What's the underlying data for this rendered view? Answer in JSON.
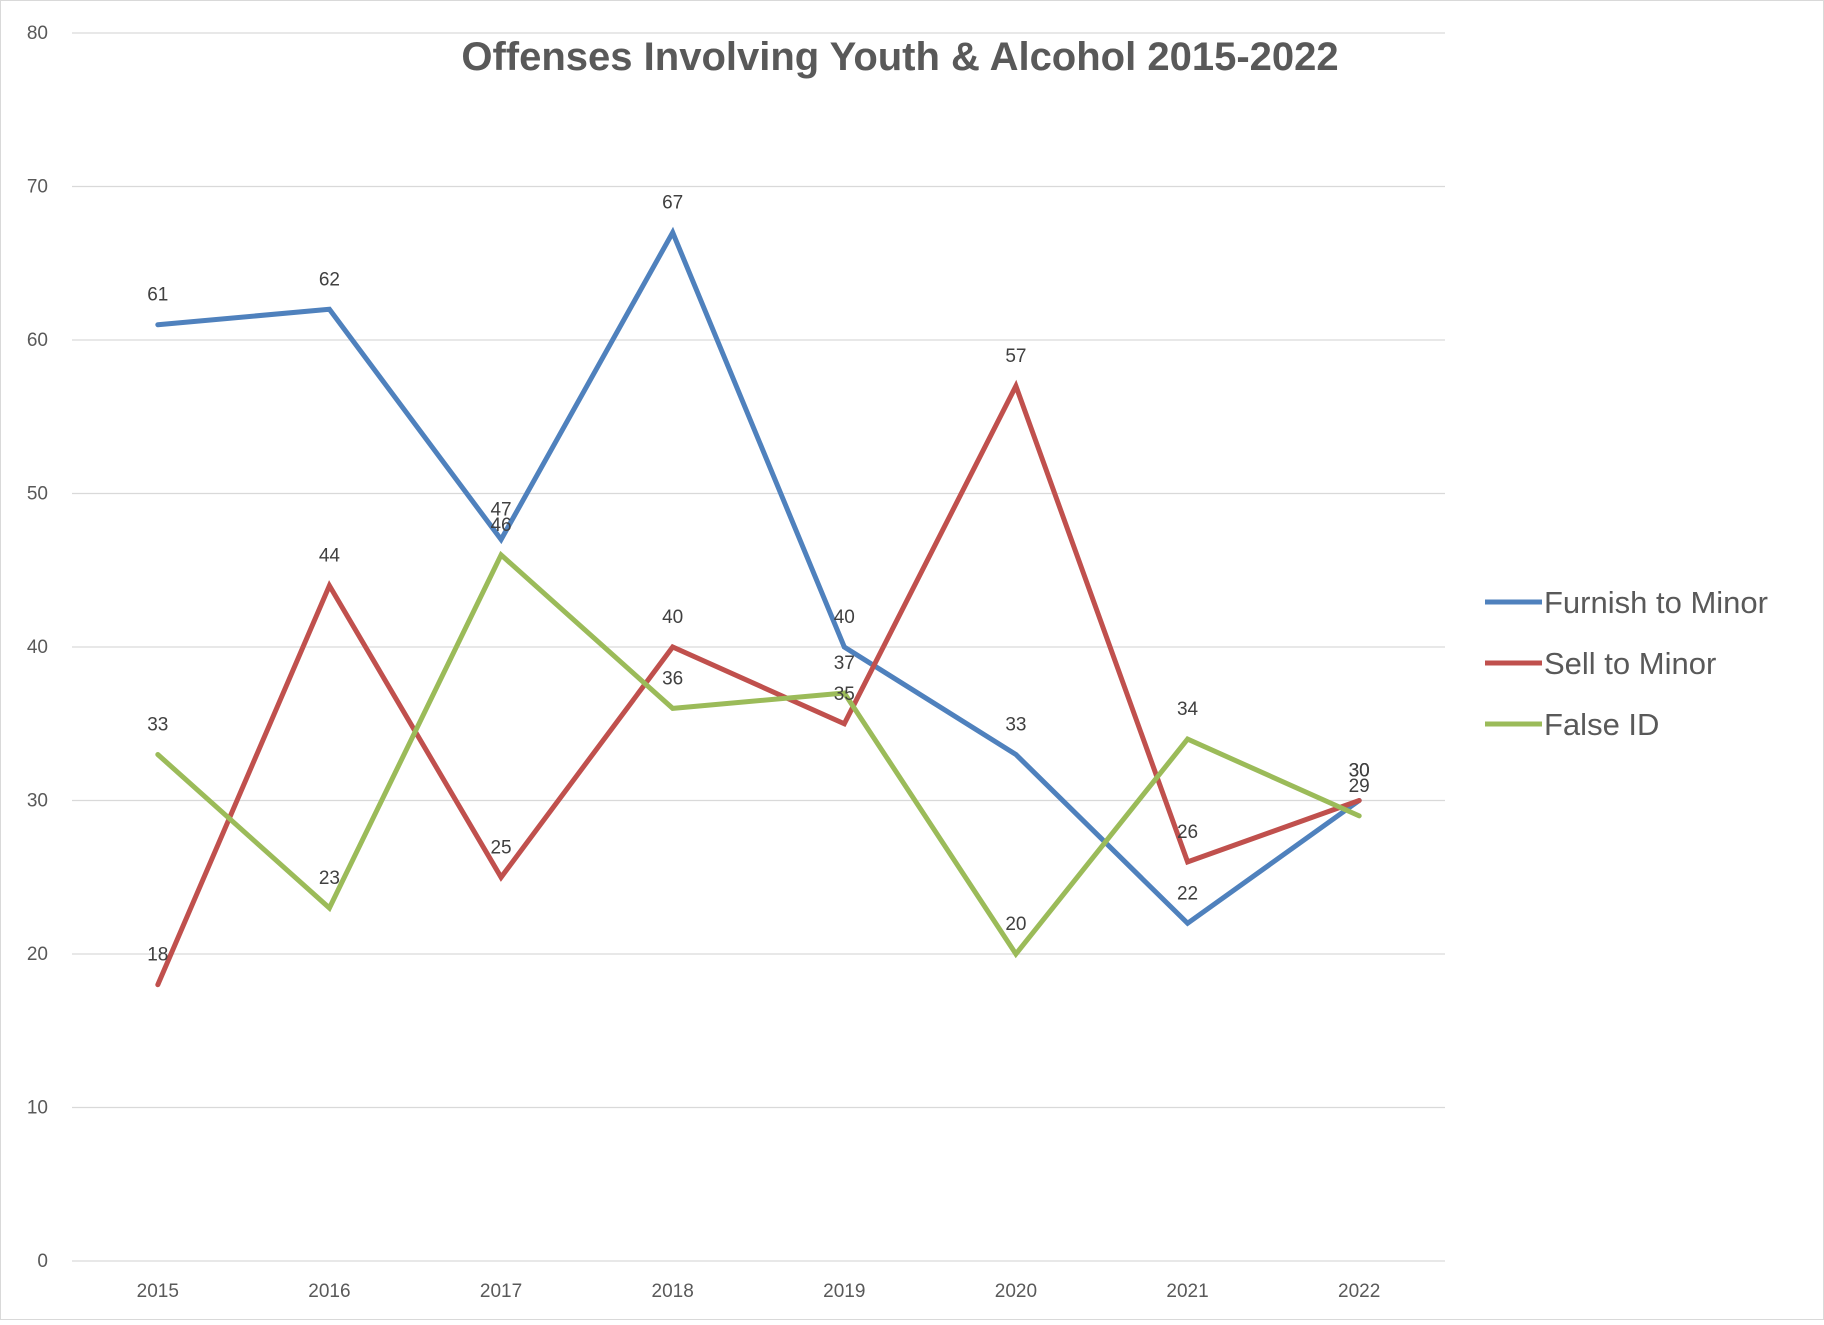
{
  "chart_data": {
    "type": "line",
    "title": "Offenses Involving Youth & Alcohol 2015-2022",
    "xlabel": "",
    "ylabel": "",
    "categories": [
      "2015",
      "2016",
      "2017",
      "2018",
      "2019",
      "2020",
      "2021",
      "2022"
    ],
    "ylim": [
      0,
      80
    ],
    "yticks": [
      0,
      10,
      20,
      30,
      40,
      50,
      60,
      70,
      80
    ],
    "grid": true,
    "legend_position": "right",
    "series": [
      {
        "name": "Furnish to Minor",
        "color": "#4F81BD",
        "values": [
          61,
          62,
          47,
          67,
          40,
          33,
          22,
          30
        ]
      },
      {
        "name": "Sell to Minor",
        "color": "#C0504D",
        "values": [
          18,
          44,
          25,
          40,
          35,
          57,
          26,
          30
        ]
      },
      {
        "name": "False ID",
        "color": "#9BBB59",
        "values": [
          33,
          23,
          46,
          36,
          37,
          20,
          34,
          29
        ]
      }
    ]
  }
}
